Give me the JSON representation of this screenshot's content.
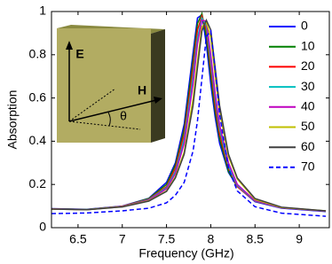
{
  "chart_data": {
    "type": "line",
    "xlabel": "Frequency (GHz)",
    "ylabel": "Absorption",
    "annotations": [
      "E",
      "H",
      "θ"
    ],
    "x": [
      6.2,
      6.6,
      7.0,
      7.3,
      7.5,
      7.6,
      7.7,
      7.8,
      7.85,
      7.9,
      7.95,
      8.0,
      8.05,
      8.1,
      8.2,
      8.3,
      8.5,
      8.8,
      9.3
    ],
    "series": [
      {
        "name": "0",
        "color": "#0000ff",
        "line_style": "solid",
        "values": [
          0.088,
          0.085,
          0.1,
          0.136,
          0.21,
          0.3,
          0.48,
          0.81,
          0.97,
          0.985,
          0.85,
          0.665,
          0.51,
          0.39,
          0.256,
          0.19,
          0.12,
          0.09,
          0.075
        ]
      },
      {
        "name": "10",
        "color": "#008000",
        "line_style": "solid",
        "values": [
          0.087,
          0.084,
          0.099,
          0.135,
          0.2,
          0.29,
          0.456,
          0.777,
          0.945,
          0.99,
          0.885,
          0.7,
          0.535,
          0.41,
          0.26,
          0.19,
          0.125,
          0.093,
          0.077
        ]
      },
      {
        "name": "20",
        "color": "#ff0000",
        "line_style": "solid",
        "values": [
          0.087,
          0.084,
          0.099,
          0.132,
          0.19,
          0.275,
          0.433,
          0.739,
          0.915,
          0.98,
          0.915,
          0.739,
          0.565,
          0.433,
          0.275,
          0.19,
          0.122,
          0.092,
          0.077
        ]
      },
      {
        "name": "30",
        "color": "#00bfbf",
        "line_style": "solid",
        "values": [
          0.087,
          0.084,
          0.098,
          0.13,
          0.185,
          0.26,
          0.41,
          0.7,
          0.88,
          0.97,
          0.935,
          0.77,
          0.595,
          0.456,
          0.285,
          0.195,
          0.123,
          0.092,
          0.077
        ]
      },
      {
        "name": "40",
        "color": "#bf00bf",
        "line_style": "solid",
        "values": [
          0.087,
          0.083,
          0.098,
          0.128,
          0.18,
          0.25,
          0.39,
          0.665,
          0.85,
          0.96,
          0.955,
          0.8,
          0.62,
          0.475,
          0.3,
          0.2,
          0.125,
          0.092,
          0.077
        ]
      },
      {
        "name": "50",
        "color": "#bfbf00",
        "line_style": "solid",
        "values": [
          0.086,
          0.083,
          0.097,
          0.125,
          0.17,
          0.235,
          0.35,
          0.595,
          0.77,
          0.93,
          0.95,
          0.88,
          0.7,
          0.535,
          0.33,
          0.225,
          0.13,
          0.093,
          0.078
        ]
      },
      {
        "name": "60",
        "color": "#404040",
        "line_style": "solid",
        "values": [
          0.086,
          0.083,
          0.096,
          0.123,
          0.168,
          0.23,
          0.34,
          0.565,
          0.74,
          0.91,
          0.96,
          0.915,
          0.74,
          0.565,
          0.34,
          0.23,
          0.135,
          0.095,
          0.078
        ]
      },
      {
        "name": "70",
        "color": "#0000ff",
        "line_style": "dashed",
        "values": [
          0.065,
          0.068,
          0.078,
          0.09,
          0.115,
          0.15,
          0.21,
          0.355,
          0.495,
          0.69,
          0.885,
          0.91,
          0.73,
          0.525,
          0.275,
          0.17,
          0.097,
          0.067,
          0.053
        ]
      }
    ],
    "xlim": [
      6.2,
      9.34
    ],
    "ylim": [
      0,
      1
    ],
    "xticks": [
      6.5,
      7,
      7.5,
      8,
      8.5,
      9
    ],
    "yticks": [
      0,
      0.2,
      0.4,
      0.6,
      0.8,
      1
    ],
    "grid": false,
    "legend": "upper right"
  }
}
